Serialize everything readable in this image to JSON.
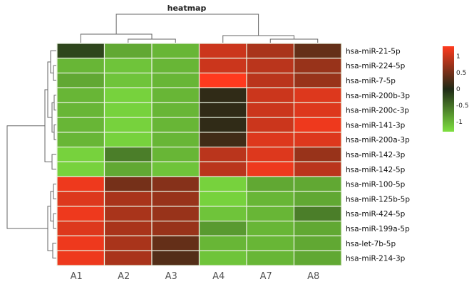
{
  "chart_data": {
    "type": "heatmap",
    "title": "heatmap",
    "columns": [
      "A1",
      "A2",
      "A3",
      "A4",
      "A7",
      "A8"
    ],
    "rows": [
      "hsa-miR-21-5p",
      "hsa-miR-224-5p",
      "hsa-miR-7-5p",
      "hsa-miR-200b-3p",
      "hsa-miR-200c-3p",
      "hsa-miR-141-3p",
      "hsa-miR-200a-3p",
      "hsa-miR-142-3p",
      "hsa-miR-142-5p",
      "hsa-miR-100-5p",
      "hsa-miR-125b-5p",
      "hsa-miR-424-5p",
      "hsa-miR-199a-5p",
      "hsa-let-7b-5p",
      "hsa-miR-214-3p"
    ],
    "values": [
      [
        -0.2,
        -0.9,
        -1.0,
        1.0,
        0.8,
        0.4
      ],
      [
        -1.0,
        -1.1,
        -1.0,
        1.0,
        0.9,
        0.7
      ],
      [
        -0.9,
        -1.1,
        -1.0,
        1.3,
        0.9,
        0.7
      ],
      [
        -1.0,
        -1.2,
        -1.0,
        0.1,
        1.0,
        1.1
      ],
      [
        -1.0,
        -1.2,
        -1.0,
        0.1,
        1.0,
        1.1
      ],
      [
        -1.0,
        -1.2,
        -1.0,
        0.1,
        1.0,
        1.2
      ],
      [
        -1.0,
        -1.2,
        -1.0,
        0.2,
        1.1,
        1.1
      ],
      [
        -1.2,
        -0.6,
        -1.0,
        0.9,
        1.1,
        0.7
      ],
      [
        -1.2,
        -0.9,
        -1.1,
        0.9,
        1.2,
        0.9
      ],
      [
        1.2,
        0.5,
        0.6,
        -1.2,
        -0.9,
        -0.9
      ],
      [
        1.1,
        0.8,
        0.7,
        -1.2,
        -1.0,
        -0.9
      ],
      [
        1.2,
        0.8,
        0.7,
        -1.1,
        -1.0,
        -0.6
      ],
      [
        1.1,
        0.8,
        0.7,
        -0.8,
        -1.0,
        -0.9
      ],
      [
        1.2,
        0.8,
        0.4,
        -1.0,
        -1.0,
        -0.9
      ],
      [
        1.2,
        0.8,
        0.3,
        -1.1,
        -1.0,
        -0.9
      ]
    ],
    "color_scale": {
      "min": -1.3,
      "max": 1.3,
      "low_color": "#7ee040",
      "mid_color": "#1f2a16",
      "high_color": "#ff3a1e",
      "ticks": [
        "1",
        "0.5",
        "0",
        "-0.5",
        "-1"
      ],
      "tick_values": [
        1,
        0.5,
        0,
        -0.5,
        -1
      ]
    },
    "legend_placement": "right",
    "grid": false
  }
}
